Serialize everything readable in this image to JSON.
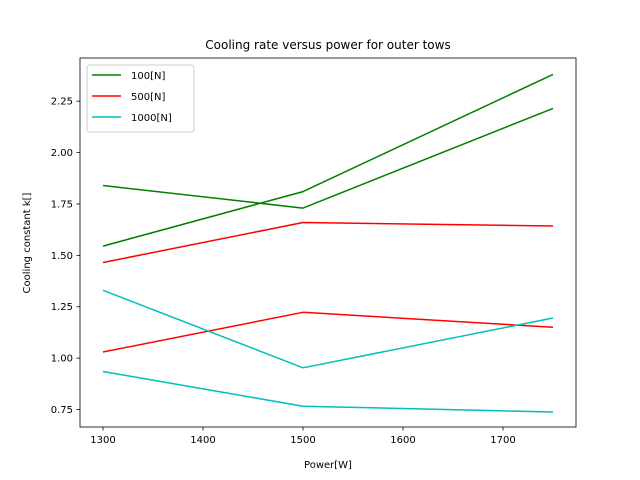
{
  "chart_data": {
    "type": "line",
    "title": "Cooling rate versus power for outer tows",
    "xlabel": "Power[W]",
    "ylabel": "Cooling constant k[]",
    "xlim": [
      1277,
      1773
    ],
    "ylim": [
      0.665,
      2.46
    ],
    "xticks": [
      1300,
      1400,
      1500,
      1600,
      1700
    ],
    "yticks": [
      0.75,
      1.0,
      1.25,
      1.5,
      1.75,
      2.0,
      2.25
    ],
    "ytick_labels": [
      "0.75",
      "1.00",
      "1.25",
      "1.50",
      "1.75",
      "2.00",
      "2.25"
    ],
    "grid": false,
    "legend_position": "top-left",
    "legend": [
      {
        "name": "100[N]",
        "color": "#008000"
      },
      {
        "name": "500[N]",
        "color": "#ff0000"
      },
      {
        "name": "1000[N]",
        "color": "#00bfbf"
      }
    ],
    "x": [
      1300,
      1500,
      1750
    ],
    "series": [
      {
        "name": "100[N]",
        "color": "#008000",
        "values": [
          1.84,
          1.73,
          2.215
        ]
      },
      {
        "name": "100[N]",
        "color": "#008000",
        "values": [
          1.545,
          1.81,
          2.38
        ]
      },
      {
        "name": "500[N]",
        "color": "#ff0000",
        "values": [
          1.465,
          1.66,
          1.643
        ]
      },
      {
        "name": "500[N]",
        "color": "#ff0000",
        "values": [
          1.03,
          1.223,
          1.15
        ]
      },
      {
        "name": "1000[N]",
        "color": "#00bfbf",
        "values": [
          1.33,
          0.953,
          1.195
        ]
      },
      {
        "name": "1000[N]",
        "color": "#00bfbf",
        "values": [
          0.935,
          0.766,
          0.738
        ]
      }
    ]
  }
}
